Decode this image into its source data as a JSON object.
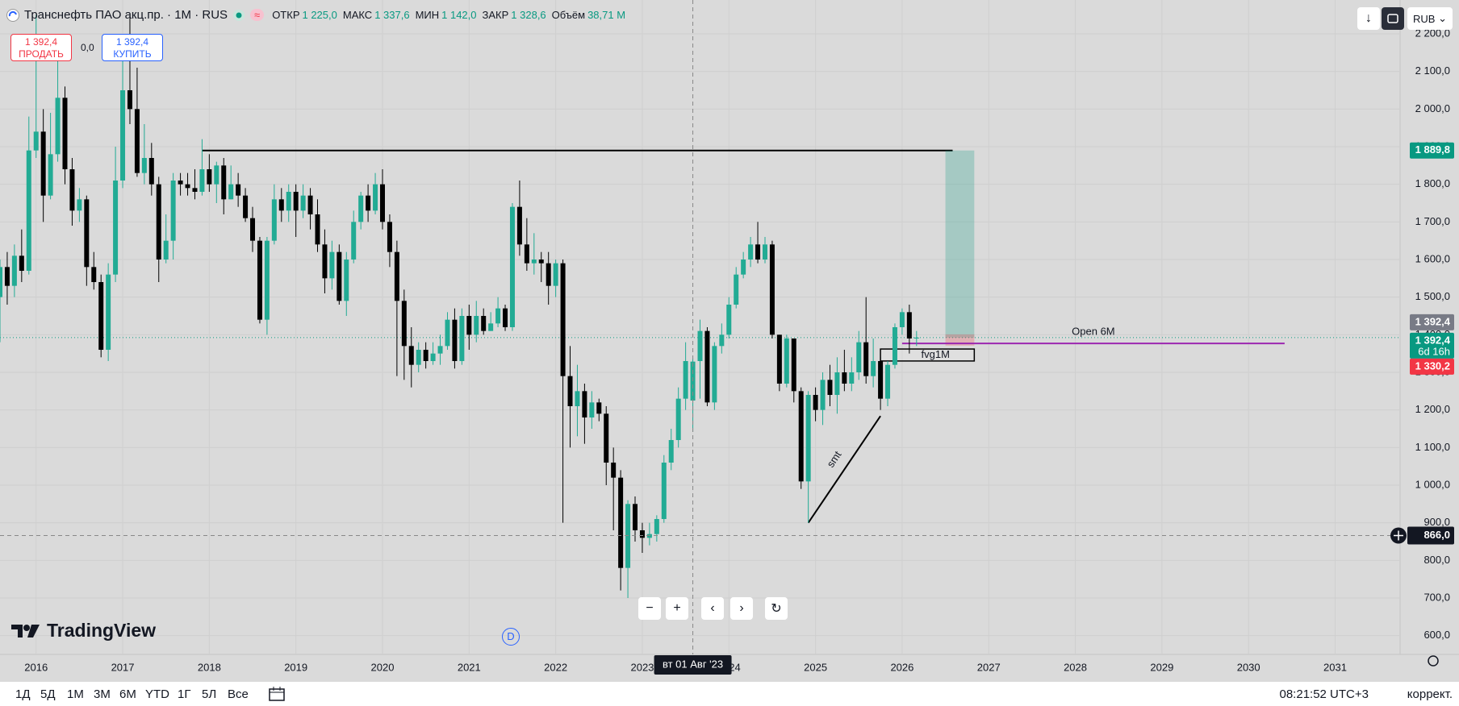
{
  "header": {
    "symbol": "Транснефть ПАО акц.пр. · 1М · RUS",
    "badge": "≈",
    "ohlc": [
      {
        "name": "ОТКР",
        "value": "1 225,0"
      },
      {
        "name": "МАКС",
        "value": "1 337,6"
      },
      {
        "name": "МИН",
        "value": "1 142,0"
      },
      {
        "name": "ЗАКР",
        "value": "1 328,6"
      },
      {
        "name": "Объём",
        "value": "38,71 M"
      }
    ],
    "sell": {
      "price": "1 392,4",
      "label": "ПРОДАТЬ"
    },
    "spread": "0,0",
    "buy": {
      "price": "1 392,4",
      "label": "КУПИТЬ"
    },
    "currency": "RUB"
  },
  "logo": "TradingView",
  "marker": "D",
  "bottom_bar": {
    "ranges": [
      "1Д",
      "5Д",
      "1М",
      "3М",
      "6М",
      "YTD",
      "1Г",
      "5Л",
      "Все"
    ],
    "time": "08:21:52 UTC+3",
    "adjust": "коррект."
  },
  "chart_data": {
    "type": "candlestick",
    "up_color": "#22ab94",
    "down_color": "#000000",
    "grid": true,
    "x": [
      "2015-08",
      "2015-09",
      "2015-10",
      "2015-11",
      "2015-12",
      "2016-01",
      "2016-02",
      "2016-03",
      "2016-04",
      "2016-05",
      "2016-06",
      "2016-07",
      "2016-08",
      "2016-09",
      "2016-10",
      "2016-11",
      "2016-12",
      "2017-01",
      "2017-02",
      "2017-03",
      "2017-04",
      "2017-05",
      "2017-06",
      "2017-07",
      "2017-08",
      "2017-09",
      "2017-10",
      "2017-11",
      "2017-12",
      "2018-01",
      "2018-02",
      "2018-03",
      "2018-04",
      "2018-05",
      "2018-06",
      "2018-07",
      "2018-08",
      "2018-09",
      "2018-10",
      "2018-11",
      "2018-12",
      "2019-01",
      "2019-02",
      "2019-03",
      "2019-04",
      "2019-05",
      "2019-06",
      "2019-07",
      "2019-08",
      "2019-09",
      "2019-10",
      "2019-11",
      "2019-12",
      "2020-01",
      "2020-02",
      "2020-03",
      "2020-04",
      "2020-05",
      "2020-06",
      "2020-07",
      "2020-08",
      "2020-09",
      "2020-10",
      "2020-11",
      "2020-12",
      "2021-01",
      "2021-02",
      "2021-03",
      "2021-04",
      "2021-05",
      "2021-06",
      "2021-07",
      "2021-08",
      "2021-09",
      "2021-10",
      "2021-11",
      "2021-12",
      "2022-01",
      "2022-02",
      "2022-03",
      "2022-04",
      "2022-05",
      "2022-06",
      "2022-07",
      "2022-08",
      "2022-09",
      "2022-10",
      "2022-11",
      "2022-12",
      "2023-01",
      "2023-02",
      "2023-03",
      "2023-04",
      "2023-05",
      "2023-06",
      "2023-07",
      "2023-08",
      "2023-09",
      "2023-10",
      "2023-11",
      "2023-12",
      "2024-01",
      "2024-02",
      "2024-03",
      "2024-04",
      "2024-05",
      "2024-06",
      "2024-07",
      "2024-08",
      "2024-09",
      "2024-10",
      "2024-11",
      "2024-12",
      "2025-01",
      "2025-02",
      "2025-03",
      "2025-04",
      "2025-05",
      "2025-06",
      "2025-07",
      "2025-08",
      "2025-09",
      "2025-10",
      "2025-11",
      "2025-12",
      "2026-01",
      "2026-02",
      "2026-03"
    ],
    "open": [
      1500,
      1580,
      1530,
      1610,
      1570,
      1890,
      1940,
      1770,
      1880,
      2030,
      1840,
      1730,
      1760,
      1580,
      1540,
      1360,
      1560,
      1810,
      2050,
      2000,
      1830,
      1870,
      1800,
      1600,
      1650,
      1810,
      1800,
      1790,
      1780,
      1840,
      1800,
      1850,
      1760,
      1800,
      1770,
      1710,
      1650,
      1440,
      1650,
      1760,
      1730,
      1780,
      1730,
      1770,
      1720,
      1640,
      1550,
      1620,
      1490,
      1600,
      1700,
      1770,
      1730,
      1800,
      1700,
      1620,
      1490,
      1370,
      1320,
      1360,
      1330,
      1350,
      1370,
      1440,
      1330,
      1450,
      1400,
      1450,
      1410,
      1430,
      1470,
      1420,
      1740,
      1640,
      1590,
      1600,
      1590,
      1530,
      1590,
      1290,
      1210,
      1250,
      1180,
      1220,
      1190,
      1060,
      1020,
      780,
      950,
      880,
      860,
      870,
      910,
      1060,
      1120,
      1230,
      1225,
      1330,
      1410,
      1220,
      1370,
      1400,
      1480,
      1560,
      1600,
      1640,
      1600,
      1640,
      1400,
      1270,
      1390,
      1250,
      1010,
      1240,
      1200,
      1280,
      1240,
      1300,
      1270,
      1300,
      1380,
      1290,
      1330,
      1230,
      1320,
      1420,
      1460,
      1390
    ],
    "high": [
      1600,
      1620,
      1640,
      1680,
      1980,
      2250,
      2000,
      1990,
      2140,
      2060,
      1870,
      1790,
      1770,
      1620,
      1560,
      1590,
      1900,
      2150,
      2250,
      2110,
      1960,
      1910,
      1820,
      1720,
      1830,
      1830,
      1830,
      1840,
      1920,
      1880,
      1860,
      1870,
      1850,
      1830,
      1790,
      1740,
      1660,
      1660,
      1800,
      1790,
      1800,
      1800,
      1800,
      1790,
      1760,
      1680,
      1650,
      1640,
      1620,
      1730,
      1780,
      1800,
      1830,
      1840,
      1720,
      1650,
      1520,
      1420,
      1380,
      1380,
      1380,
      1400,
      1460,
      1470,
      1470,
      1480,
      1490,
      1470,
      1460,
      1500,
      1480,
      1750,
      1810,
      1710,
      1670,
      1620,
      1620,
      1600,
      1600,
      1370,
      1320,
      1270,
      1250,
      1230,
      1210,
      1100,
      1040,
      960,
      970,
      900,
      900,
      920,
      1080,
      1150,
      1260,
      1380,
      1337.6,
      1440,
      1420,
      1380,
      1430,
      1500,
      1580,
      1620,
      1660,
      1700,
      1660,
      1650,
      1400,
      1400,
      1390,
      1260,
      1250,
      1260,
      1300,
      1320,
      1340,
      1360,
      1340,
      1410,
      1500,
      1390,
      1340,
      1330,
      1430,
      1470,
      1480,
      1410
    ],
    "low": [
      1380,
      1480,
      1500,
      1540,
      1560,
      1870,
      1700,
      1760,
      1860,
      1800,
      1690,
      1700,
      1530,
      1520,
      1340,
      1330,
      1540,
      1790,
      1960,
      1820,
      1800,
      1770,
      1540,
      1590,
      1600,
      1770,
      1770,
      1760,
      1770,
      1780,
      1750,
      1720,
      1760,
      1740,
      1700,
      1620,
      1430,
      1400,
      1640,
      1700,
      1700,
      1660,
      1710,
      1680,
      1620,
      1510,
      1520,
      1480,
      1450,
      1590,
      1680,
      1700,
      1720,
      1680,
      1580,
      1290,
      1280,
      1260,
      1300,
      1310,
      1320,
      1320,
      1360,
      1310,
      1320,
      1360,
      1380,
      1400,
      1410,
      1420,
      1410,
      1410,
      1610,
      1570,
      1560,
      1540,
      1480,
      1500,
      900,
      1100,
      1130,
      1110,
      1150,
      1170,
      1000,
      880,
      720,
      700,
      850,
      820,
      840,
      850,
      900,
      1040,
      1100,
      1200,
      1142,
      1230,
      1210,
      1200,
      1350,
      1390,
      1470,
      1550,
      1580,
      1590,
      1590,
      1390,
      1250,
      1260,
      1220,
      990,
      900,
      1170,
      1160,
      1210,
      1190,
      1250,
      1250,
      1280,
      1270,
      1260,
      1200,
      1210,
      1310,
      1400,
      1350,
      1370
    ],
    "close": [
      1580,
      1530,
      1610,
      1570,
      1890,
      1940,
      1770,
      1880,
      2030,
      1840,
      1730,
      1760,
      1580,
      1540,
      1360,
      1560,
      1810,
      2050,
      2000,
      1830,
      1870,
      1800,
      1600,
      1650,
      1810,
      1800,
      1790,
      1780,
      1840,
      1800,
      1850,
      1760,
      1800,
      1770,
      1710,
      1650,
      1440,
      1650,
      1760,
      1730,
      1780,
      1730,
      1770,
      1720,
      1640,
      1550,
      1620,
      1490,
      1600,
      1700,
      1770,
      1730,
      1800,
      1700,
      1620,
      1490,
      1370,
      1320,
      1360,
      1330,
      1350,
      1370,
      1440,
      1330,
      1450,
      1400,
      1450,
      1410,
      1430,
      1470,
      1420,
      1740,
      1640,
      1590,
      1600,
      1590,
      1530,
      1590,
      1290,
      1210,
      1250,
      1180,
      1220,
      1190,
      1060,
      1020,
      780,
      950,
      880,
      860,
      870,
      910,
      1060,
      1120,
      1230,
      1330,
      1328.6,
      1410,
      1220,
      1370,
      1400,
      1480,
      1560,
      1600,
      1640,
      1600,
      1640,
      1400,
      1270,
      1390,
      1250,
      1010,
      1240,
      1200,
      1280,
      1240,
      1300,
      1270,
      1300,
      1380,
      1290,
      1330,
      1230,
      1320,
      1420,
      1460,
      1390,
      1392.4
    ],
    "xlim": [
      "2015-08",
      "2031-10"
    ],
    "xticks": [
      "2016",
      "2017",
      "2018",
      "2019",
      "2020",
      "2021",
      "2022",
      "2023",
      "2024",
      "2025",
      "2026",
      "2027",
      "2028",
      "2029",
      "2030",
      "2031"
    ],
    "ylim": [
      550,
      2290
    ],
    "yticks": [
      {
        "value": 600,
        "label": "600,0"
      },
      {
        "value": 700,
        "label": "700,0"
      },
      {
        "value": 800,
        "label": "800,0"
      },
      {
        "value": 900,
        "label": "900,0"
      },
      {
        "value": 1000,
        "label": "1 000,0"
      },
      {
        "value": 1100,
        "label": "1 100,0"
      },
      {
        "value": 1200,
        "label": "1 200,0"
      },
      {
        "value": 1300,
        "label": "1 300,0"
      },
      {
        "value": 1400,
        "label": "1 400,0"
      },
      {
        "value": 1500,
        "label": "1 500,0"
      },
      {
        "value": 1600,
        "label": "1 600,0"
      },
      {
        "value": 1700,
        "label": "1 700,0"
      },
      {
        "value": 1800,
        "label": "1 800,0"
      },
      {
        "value": 1900,
        "label": "1 900,0"
      },
      {
        "value": 2000,
        "label": "2 000,0"
      },
      {
        "value": 2100,
        "label": "2 100,0"
      },
      {
        "value": 2200,
        "label": "2 200,0"
      }
    ],
    "price_labels": [
      {
        "value": 1889.8,
        "label": "1 889,8",
        "color": "#089981"
      },
      {
        "value": 1392.4,
        "label": "1 392,4",
        "color": "#787b86"
      },
      {
        "value": 1392.4,
        "label": "1 392,4",
        "sub": "6d 16h",
        "color": "#089981",
        "line": "dotted"
      },
      {
        "value": 1330.2,
        "label": "1 330,2",
        "color": "#f23645"
      }
    ],
    "crosshair": {
      "x": "2023-08",
      "x_label": "вт 01 Авг '23",
      "price": {
        "value": 866,
        "label": "866,0"
      }
    },
    "drawings": [
      {
        "kind": "hline",
        "price": 1889.8,
        "start": "2017-12",
        "end": "2026-08",
        "color": "#000000"
      },
      {
        "kind": "position",
        "entry": 1392.4,
        "target": 1889.8,
        "start": "2026-07",
        "end": "2026-11",
        "color": "#089981"
      },
      {
        "kind": "hline",
        "price": 1377,
        "start": "2026-01",
        "end": "2030-06",
        "color": "#9c27b0",
        "text": "Open 6M"
      },
      {
        "kind": "box",
        "top": 1362,
        "bottom": 1330.2,
        "start": "2025-10",
        "end": "2026-11",
        "color": "#000000",
        "text": "fvg1M"
      },
      {
        "kind": "trend",
        "points": [
          [
            "2024-12",
            900
          ],
          [
            "2025-10",
            1184
          ]
        ],
        "color": "#000000",
        "text": "smt"
      }
    ]
  }
}
